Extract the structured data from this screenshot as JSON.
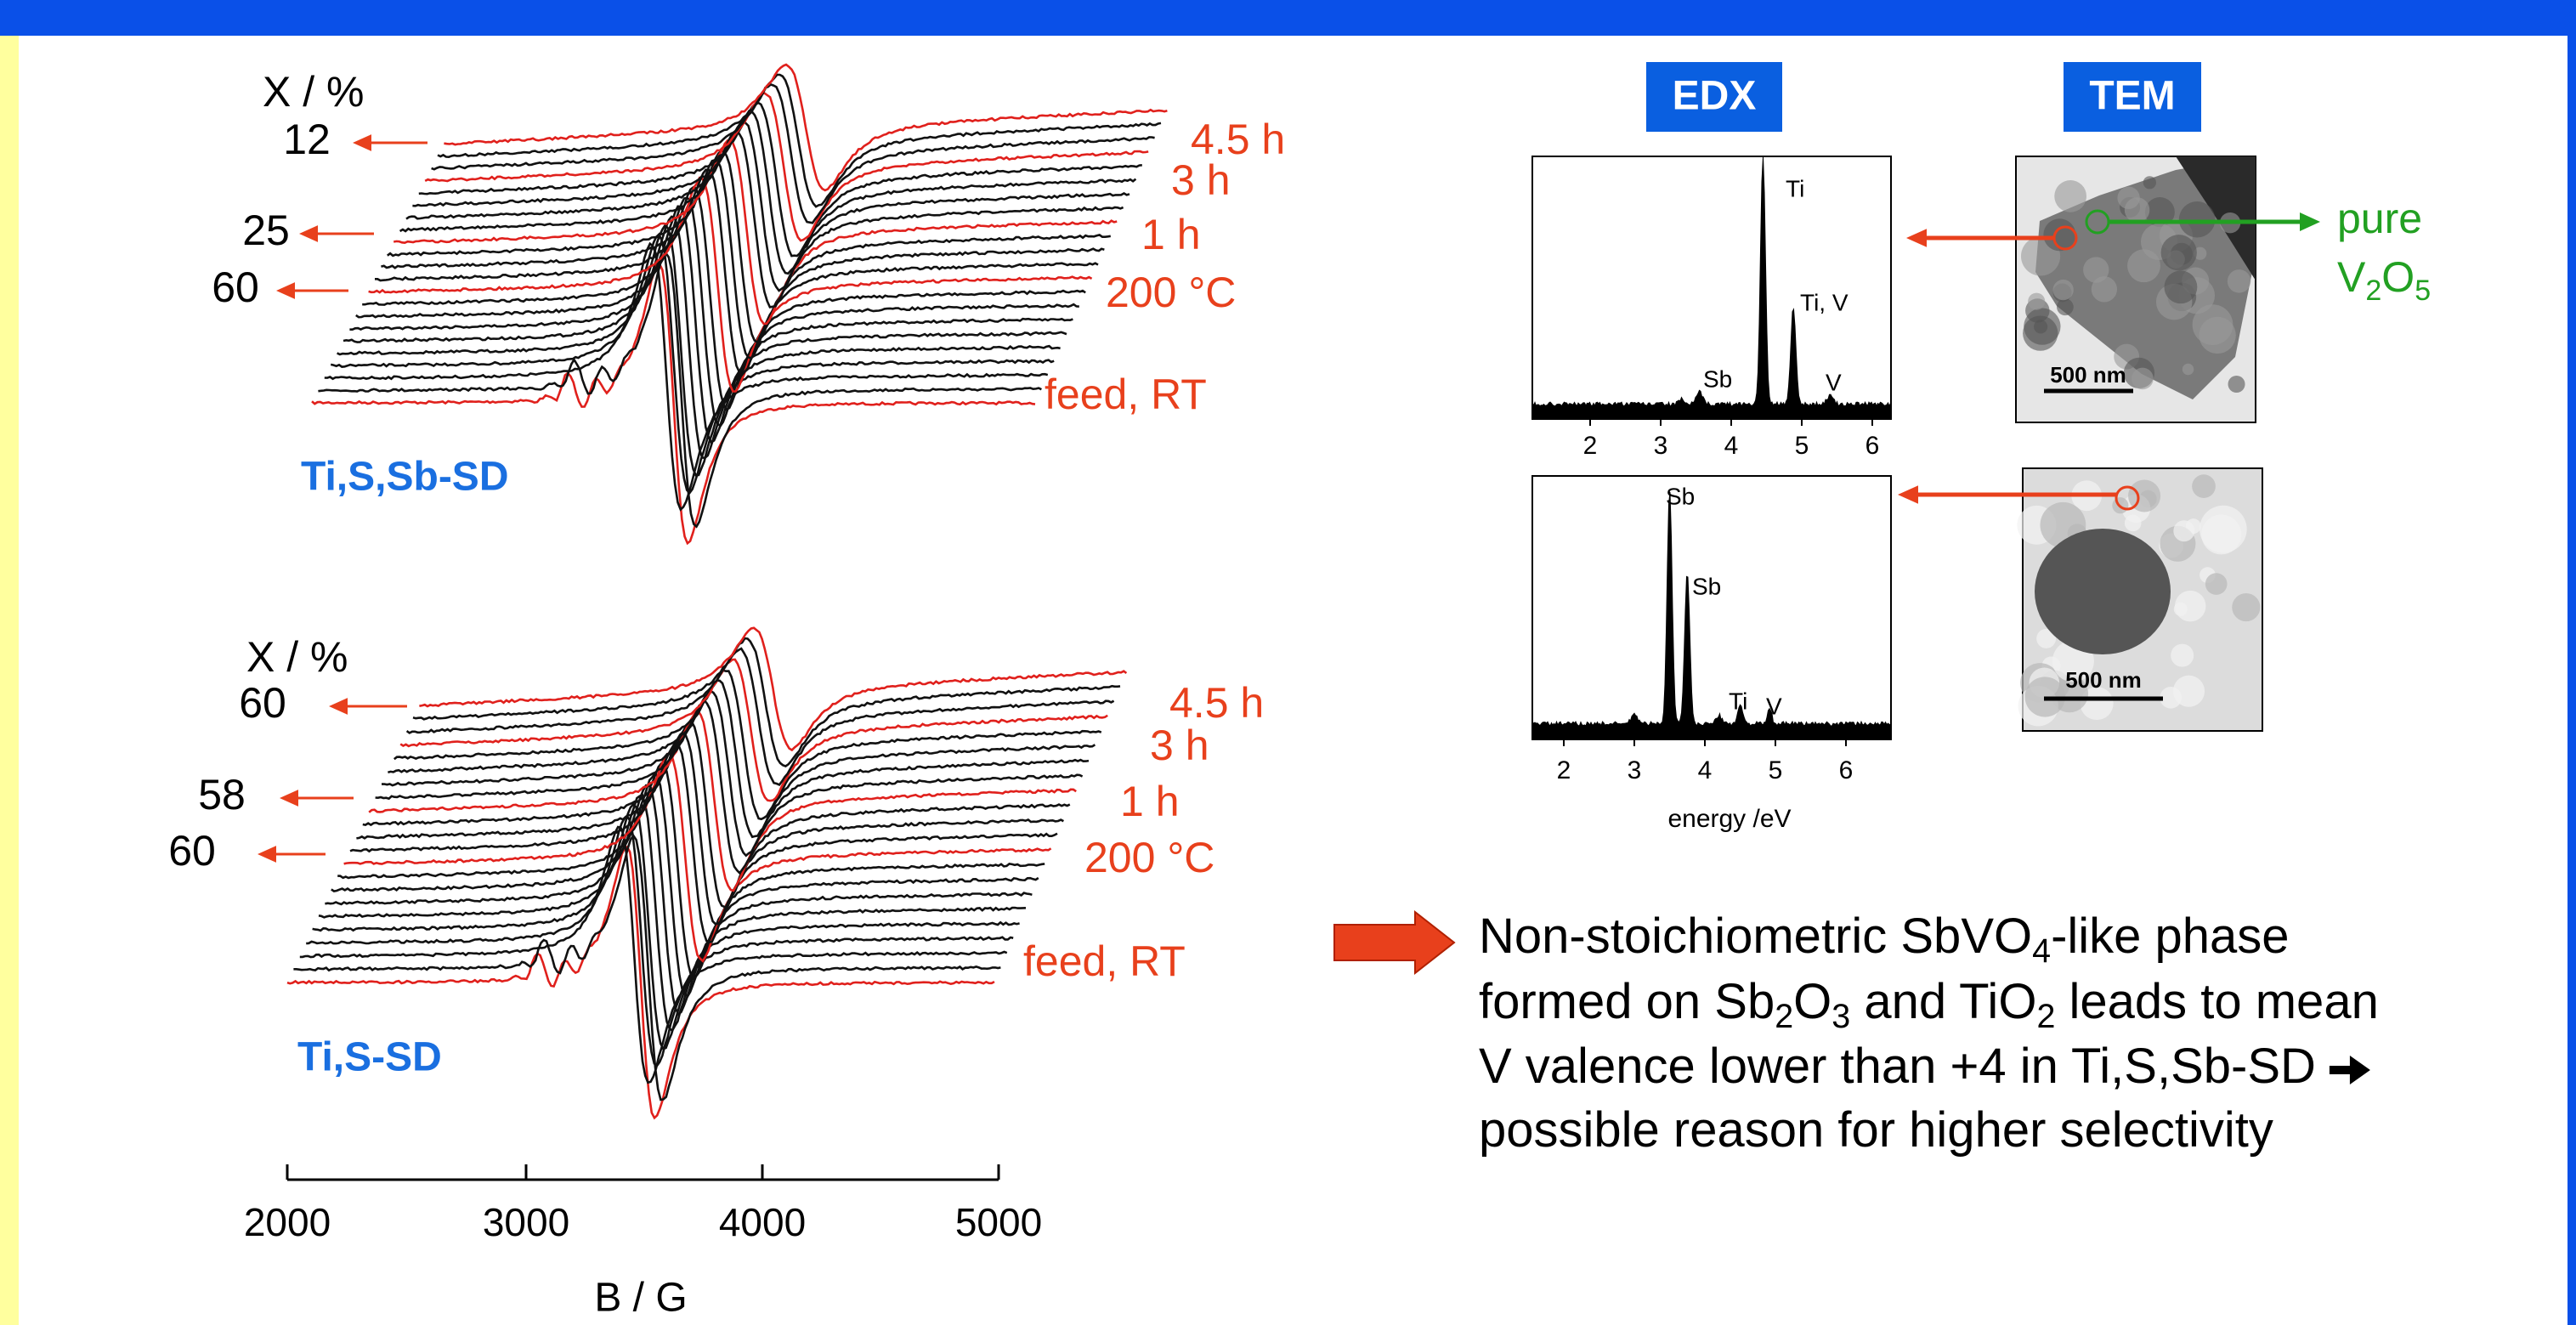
{
  "epr": {
    "panels": [
      {
        "x_label": "X / %",
        "conversions": [
          "12",
          "25",
          "60"
        ],
        "times": [
          "4.5 h",
          "3 h",
          "1 h",
          "200 °C",
          "feed, RT"
        ],
        "sample": "Ti,S,Sb-SD"
      },
      {
        "x_label": "X / %",
        "conversions": [
          "60",
          "58",
          "60"
        ],
        "times": [
          "4.5 h",
          "3 h",
          "1 h",
          "200 °C",
          "feed, RT"
        ],
        "sample": "Ti,S-SD"
      }
    ],
    "x_axis": {
      "ticks": [
        "2000",
        "3000",
        "4000",
        "5000"
      ],
      "label": "B / G"
    }
  },
  "edx": {
    "title": "EDX",
    "spectra": [
      {
        "peaks": [
          "Ti",
          "Ti, V",
          "Sb",
          "V"
        ],
        "ticks": [
          "2",
          "3",
          "4",
          "5",
          "6"
        ]
      },
      {
        "peaks": [
          "Sb",
          "Sb",
          "Ti",
          "V"
        ],
        "ticks": [
          "2",
          "3",
          "4",
          "5",
          "6"
        ]
      }
    ],
    "x_label": "energy /eV"
  },
  "tem": {
    "title": "TEM",
    "scale_bars": [
      "500 nm",
      "500 nm"
    ],
    "phase_label": {
      "line1": "pure",
      "line2": [
        "V",
        "2",
        "O",
        "5"
      ]
    }
  },
  "conclusion": {
    "lines": [
      [
        "Non-stoichiometric SbVO",
        "4",
        "-like phase"
      ],
      [
        "formed on Sb",
        "2",
        "O",
        "3",
        " and TiO",
        "2",
        " leads to mean"
      ],
      [
        "V valence lower than +4 in Ti,S,Sb-SD"
      ],
      [
        "possible reason for higher selectivity"
      ]
    ]
  }
}
